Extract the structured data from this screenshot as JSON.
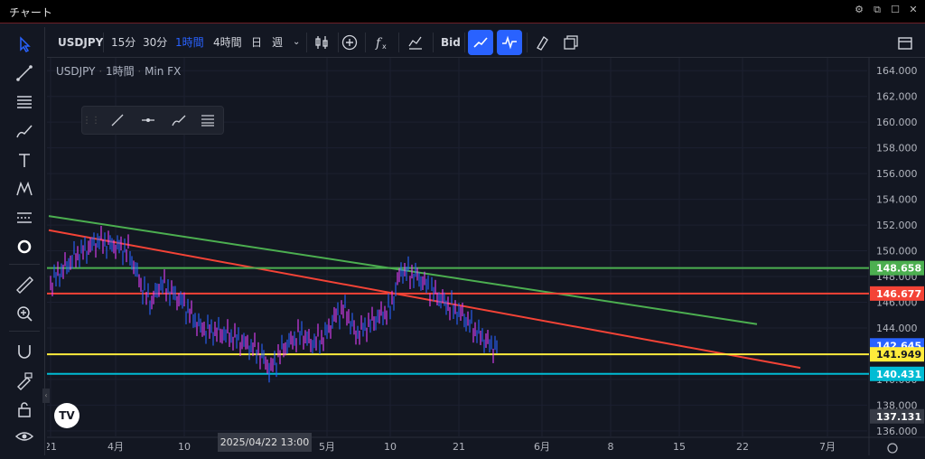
{
  "window": {
    "title": "チャート"
  },
  "toolbar": {
    "symbol": "USDJPY",
    "intervals": [
      "15分",
      "30分",
      "1時間",
      "4時間",
      "日",
      "週"
    ],
    "active_interval": "1時間",
    "bid_label": "Bid"
  },
  "legend": {
    "symbol": "USDJPY",
    "interval": "1時間",
    "source": "Min FX"
  },
  "chart_data": {
    "type": "line",
    "title": "USDJPY · 1時間 · Min FX",
    "y_ticks": [
      "164.000",
      "162.000",
      "160.000",
      "158.000",
      "156.000",
      "154.000",
      "152.000",
      "150.000",
      "148.000",
      "146.000",
      "144.000",
      "142.000",
      "140.000",
      "138.000",
      "136.000"
    ],
    "ylim": [
      135.5,
      165.0
    ],
    "x_ticks": [
      "21",
      "4月",
      "10",
      "5月",
      "10",
      "21",
      "6月",
      "8",
      "15",
      "22",
      "7月"
    ],
    "crosshair_date": "2025/04/22  13:00",
    "price_path": [
      [
        "start",
        147.5
      ],
      [
        "3/24",
        149.5
      ],
      [
        "3/28",
        150.8
      ],
      [
        "4/2",
        150.0
      ],
      [
        "4/3",
        147.0
      ],
      [
        "4/4",
        146.0
      ],
      [
        "4/7",
        147.5
      ],
      [
        "4/9",
        146.0
      ],
      [
        "4/10",
        144.0
      ],
      [
        "4/11",
        143.5
      ],
      [
        "4/15",
        143.0
      ],
      [
        "4/18",
        142.3
      ],
      [
        "4/21",
        141.0
      ],
      [
        "4/22",
        140.6
      ],
      [
        "4/23",
        142.5
      ],
      [
        "4/25",
        143.6
      ],
      [
        "4/28",
        142.8
      ],
      [
        "4/30",
        143.2
      ],
      [
        "5/1",
        145.0
      ],
      [
        "5/2",
        145.5
      ],
      [
        "5/6",
        143.5
      ],
      [
        "5/7",
        144.5
      ],
      [
        "5/9",
        145.5
      ],
      [
        "5/12",
        148.5
      ],
      [
        "5/13",
        148.0
      ],
      [
        "5/15",
        146.0
      ],
      [
        "5/19",
        145.0
      ],
      [
        "5/21",
        143.5
      ],
      [
        "5/23",
        142.5
      ],
      [
        "5/26",
        142.6
      ]
    ],
    "price_labels": [
      {
        "value": 148.658,
        "text": "148.658",
        "color": "#4caf50"
      },
      {
        "value": 146.677,
        "text": "146.677",
        "color": "#f44336"
      },
      {
        "value": 142.645,
        "text": "142.645",
        "color": "#2962ff"
      },
      {
        "value": 141.949,
        "text": "141.949",
        "color": "#ffeb3b"
      },
      {
        "value": 140.431,
        "text": "140.431",
        "color": "#00bcd4"
      },
      {
        "value": 137.131,
        "text": "137.131",
        "color": "#363a45"
      }
    ],
    "horizontal_lines": [
      {
        "value": 148.658,
        "color": "#4caf50"
      },
      {
        "value": 146.677,
        "color": "#f44336"
      },
      {
        "value": 141.949,
        "color": "#ffeb3b"
      },
      {
        "value": 140.431,
        "color": "#00bcd4"
      }
    ],
    "trend_lines": [
      {
        "color": "#4caf50",
        "from": 152.7,
        "to": 144.3
      },
      {
        "color": "#f44336",
        "from": 151.6,
        "to": 140.9
      }
    ]
  },
  "colors": {
    "background": "#131722",
    "up": "#2962ff",
    "down": "#e040fb",
    "accent": "#2962ff"
  }
}
